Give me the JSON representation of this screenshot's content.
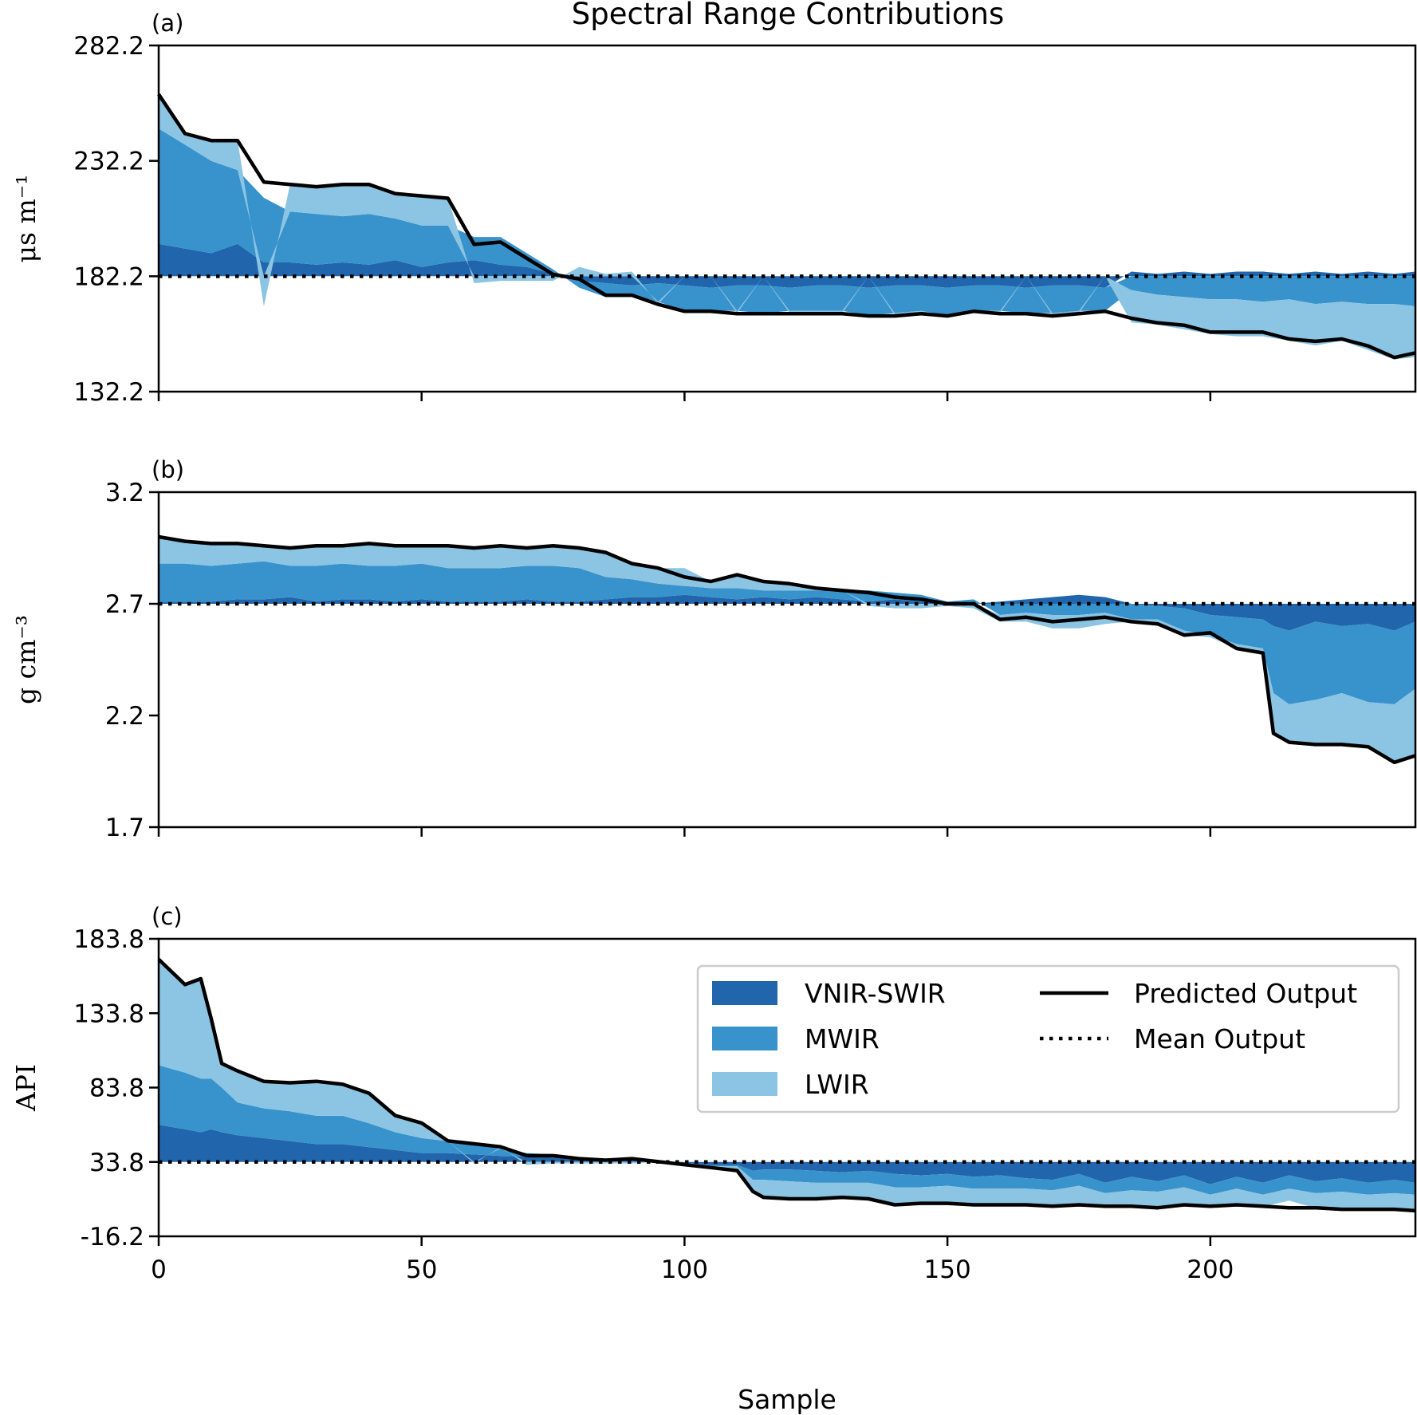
{
  "chart_data": {
    "type": "area",
    "title": "Spectral Range Contributions",
    "xlabel": "Sample",
    "xlim": [
      0,
      239
    ],
    "xticks": [
      0,
      50,
      100,
      150,
      200
    ],
    "legend": {
      "placement": "upper-right of panel (c)",
      "entries": [
        {
          "label": "VNIR-SWIR",
          "kind": "patch",
          "color": "#2166ac"
        },
        {
          "label": "MWIR",
          "kind": "patch",
          "color": "#3893cc"
        },
        {
          "label": "LWIR",
          "kind": "patch",
          "color": "#8cc4e3"
        },
        {
          "label": "Predicted Output",
          "kind": "solid-line",
          "color": "#000000"
        },
        {
          "label": "Mean Output",
          "kind": "dotted-line",
          "color": "#000000"
        }
      ]
    },
    "panels": [
      {
        "id": "a",
        "panel_label": "(a)",
        "ylabel": "μs m⁻¹",
        "ylim": [
          132.2,
          282.2
        ],
        "yticks": [
          "132.2",
          "182.2",
          "232.2",
          "282.2"
        ],
        "mean": 182.2,
        "x": [
          0,
          5,
          10,
          15,
          20,
          25,
          30,
          35,
          40,
          45,
          50,
          55,
          60,
          65,
          70,
          75,
          80,
          85,
          90,
          95,
          100,
          105,
          110,
          115,
          120,
          125,
          130,
          135,
          140,
          145,
          150,
          155,
          160,
          165,
          170,
          175,
          180,
          185,
          190,
          195,
          200,
          205,
          210,
          215,
          220,
          225,
          230,
          235,
          239
        ],
        "predicted": [
          261,
          244,
          241,
          241,
          223,
          222,
          221,
          222,
          222,
          218,
          217,
          216,
          196,
          197,
          190,
          183,
          181,
          174,
          174,
          170,
          167,
          167,
          166,
          166,
          166,
          166,
          166,
          165,
          165,
          166,
          165,
          167,
          166,
          166,
          165,
          166,
          167,
          164,
          162,
          161,
          158,
          158,
          158,
          155,
          154,
          155,
          152,
          147,
          149
        ],
        "VNIR-SWIR": [
          14,
          12,
          10,
          14,
          6,
          6,
          5,
          6,
          5,
          7,
          4,
          6,
          7,
          5,
          4,
          1,
          -2,
          -3,
          -4,
          -3,
          -4,
          -5,
          -4,
          -4,
          -5,
          -4,
          -4,
          -5,
          -4,
          -4,
          -5,
          -4,
          -4,
          -5,
          -4,
          -4,
          -5,
          2,
          1,
          2,
          1,
          2,
          2,
          1,
          2,
          1,
          2,
          1,
          2
        ],
        "MWIR": [
          50,
          45,
          40,
          32,
          28,
          22,
          22,
          20,
          22,
          18,
          18,
          16,
          10,
          12,
          6,
          2,
          -3,
          -6,
          -5,
          -8,
          -11,
          -10,
          -11,
          -12,
          -10,
          -11,
          -11,
          -12,
          -12,
          -11,
          -12,
          -11,
          -11,
          -11,
          -12,
          -11,
          -10,
          -6,
          -8,
          -9,
          -10,
          -10,
          -11,
          -10,
          -12,
          -11,
          -12,
          -12,
          -13
        ],
        "LWIR": [
          15,
          5,
          9,
          13,
          -13,
          12,
          12,
          14,
          13,
          11,
          13,
          12,
          -3,
          -2,
          -2,
          -2,
          4,
          1,
          2,
          -1,
          0,
          0,
          -1,
          0,
          -1,
          -1,
          -1,
          0,
          -1,
          -1,
          -0.2,
          -0.2,
          -1,
          0,
          -1,
          -1,
          0,
          -14,
          -13,
          -14,
          -15,
          -16,
          -15,
          -18,
          -18,
          -17,
          -20,
          -24,
          -22
        ]
      },
      {
        "id": "b",
        "panel_label": "(b)",
        "ylabel": "g cm⁻³",
        "ylim": [
          1.7,
          3.2
        ],
        "yticks": [
          "1.7",
          "2.2",
          "2.7",
          "3.2"
        ],
        "mean": 2.7,
        "x": [
          0,
          5,
          10,
          15,
          20,
          25,
          30,
          35,
          40,
          45,
          50,
          55,
          60,
          65,
          70,
          75,
          80,
          85,
          90,
          95,
          100,
          105,
          110,
          115,
          120,
          125,
          130,
          135,
          140,
          145,
          150,
          155,
          160,
          165,
          170,
          175,
          180,
          185,
          190,
          195,
          200,
          205,
          210,
          212,
          215,
          220,
          225,
          230,
          235,
          239
        ],
        "predicted": [
          3.0,
          2.98,
          2.97,
          2.97,
          2.96,
          2.95,
          2.96,
          2.96,
          2.97,
          2.96,
          2.96,
          2.96,
          2.95,
          2.96,
          2.95,
          2.96,
          2.95,
          2.93,
          2.88,
          2.86,
          2.82,
          2.8,
          2.83,
          2.8,
          2.79,
          2.77,
          2.76,
          2.75,
          2.73,
          2.72,
          2.7,
          2.7,
          2.63,
          2.64,
          2.62,
          2.63,
          2.64,
          2.62,
          2.61,
          2.56,
          2.57,
          2.5,
          2.48,
          2.12,
          2.08,
          2.07,
          2.07,
          2.06,
          1.99,
          2.02
        ],
        "VNIR-SWIR": [
          0.01,
          0.01,
          0.01,
          0.02,
          0.02,
          0.03,
          0.01,
          0.02,
          0.02,
          0.01,
          0.02,
          0.01,
          0.01,
          0.01,
          0.02,
          0.01,
          0.01,
          0.02,
          0.03,
          0.03,
          0.04,
          0.03,
          0.02,
          0.03,
          0.02,
          0.03,
          0.02,
          0.01,
          0.02,
          0.01,
          0.0,
          0.0,
          0.01,
          0.02,
          0.03,
          0.04,
          0.03,
          0.0,
          -0.01,
          -0.02,
          -0.05,
          -0.06,
          -0.07,
          -0.1,
          -0.12,
          -0.08,
          -0.1,
          -0.09,
          -0.12,
          -0.08
        ],
        "MWIR": [
          0.17,
          0.17,
          0.16,
          0.16,
          0.17,
          0.14,
          0.16,
          0.16,
          0.15,
          0.16,
          0.16,
          0.15,
          0.15,
          0.15,
          0.15,
          0.16,
          0.15,
          0.1,
          0.08,
          0.06,
          0.04,
          0.04,
          0.05,
          0.03,
          0.04,
          0.03,
          0.04,
          0.05,
          0.03,
          0.03,
          0.01,
          0.02,
          -0.05,
          -0.04,
          -0.05,
          -0.05,
          -0.04,
          -0.07,
          -0.06,
          -0.1,
          -0.09,
          -0.12,
          -0.13,
          -0.3,
          -0.33,
          -0.35,
          -0.3,
          -0.35,
          -0.33,
          -0.3
        ],
        "LWIR": [
          0.12,
          0.1,
          0.1,
          0.09,
          0.07,
          0.08,
          0.09,
          0.08,
          0.1,
          0.09,
          0.08,
          0.1,
          0.09,
          0.1,
          0.08,
          0.09,
          0.09,
          0.11,
          0.07,
          0.07,
          0.08,
          0.03,
          0.06,
          0.04,
          0.03,
          0.01,
          0.0,
          -0.01,
          -0.02,
          -0.02,
          -0.01,
          -0.02,
          -0.03,
          -0.04,
          -0.06,
          -0.06,
          -0.05,
          -0.01,
          -0.02,
          -0.02,
          -0.01,
          -0.02,
          -0.02,
          -0.18,
          -0.17,
          -0.2,
          -0.23,
          -0.2,
          -0.26,
          -0.3
        ]
      },
      {
        "id": "c",
        "panel_label": "(c)",
        "ylabel": "API",
        "ylim": [
          -16.2,
          183.8
        ],
        "yticks": [
          "-16.2",
          "33.8",
          "83.8",
          "133.8",
          "183.8"
        ],
        "mean": 33.8,
        "x": [
          0,
          5,
          8,
          10,
          12,
          15,
          20,
          25,
          30,
          35,
          40,
          45,
          50,
          55,
          60,
          65,
          70,
          75,
          80,
          85,
          90,
          95,
          100,
          105,
          110,
          113,
          115,
          120,
          125,
          130,
          135,
          140,
          145,
          150,
          155,
          160,
          165,
          170,
          175,
          180,
          185,
          190,
          195,
          200,
          205,
          210,
          215,
          220,
          225,
          230,
          235,
          239
        ],
        "predicted": [
          170,
          153,
          157,
          130,
          100,
          95,
          88,
          87,
          88,
          86,
          80,
          65,
          60,
          48,
          46,
          44,
          38,
          38,
          36,
          35,
          36,
          34,
          32,
          30,
          28,
          14,
          10,
          9,
          9,
          10,
          9,
          5,
          6,
          6,
          5,
          5,
          5,
          4,
          5,
          4,
          4,
          3,
          5,
          4,
          5,
          4,
          3,
          3,
          2,
          2,
          2,
          1
        ],
        "VNIR-SWIR": [
          25,
          22,
          20,
          22,
          20,
          18,
          16,
          14,
          12,
          12,
          10,
          8,
          6,
          6,
          5,
          4,
          4,
          3,
          2,
          1,
          2,
          0,
          -1,
          -2,
          -2,
          -6,
          -5,
          -5,
          -6,
          -7,
          -6,
          -8,
          -9,
          -8,
          -10,
          -9,
          -11,
          -12,
          -8,
          -14,
          -10,
          -13,
          -9,
          -15,
          -10,
          -14,
          -9,
          -13,
          -11,
          -14,
          -12,
          -14
        ],
        "MWIR": [
          40,
          38,
          36,
          34,
          30,
          22,
          20,
          20,
          19,
          19,
          16,
          12,
          10,
          8,
          7,
          5,
          2,
          2,
          1,
          1,
          1,
          0,
          -1,
          -1,
          -1,
          -6,
          -7,
          -8,
          -8,
          -7,
          -8,
          -9,
          -8,
          -8,
          -8,
          -9,
          -7,
          -7,
          -8,
          -7,
          -9,
          -7,
          -8,
          -7,
          -8,
          -8,
          -9,
          -8,
          -9,
          -8,
          -9,
          -8
        ],
        "LWIR": [
          71,
          59,
          67,
          40,
          16,
          21,
          18,
          19,
          23,
          21,
          20,
          11,
          10,
          0,
          -1,
          1,
          -2,
          -1,
          -1,
          -1,
          -1,
          0,
          0,
          -1,
          -3,
          -8,
          -12,
          -12,
          -11,
          -10,
          -11,
          -12,
          -11,
          -12,
          -11,
          -11,
          -11,
          -11,
          -13,
          -9,
          -11,
          -11,
          -12,
          -8,
          -11,
          -8,
          -8,
          -10,
          -12,
          -10,
          -11,
          -11
        ]
      }
    ]
  }
}
